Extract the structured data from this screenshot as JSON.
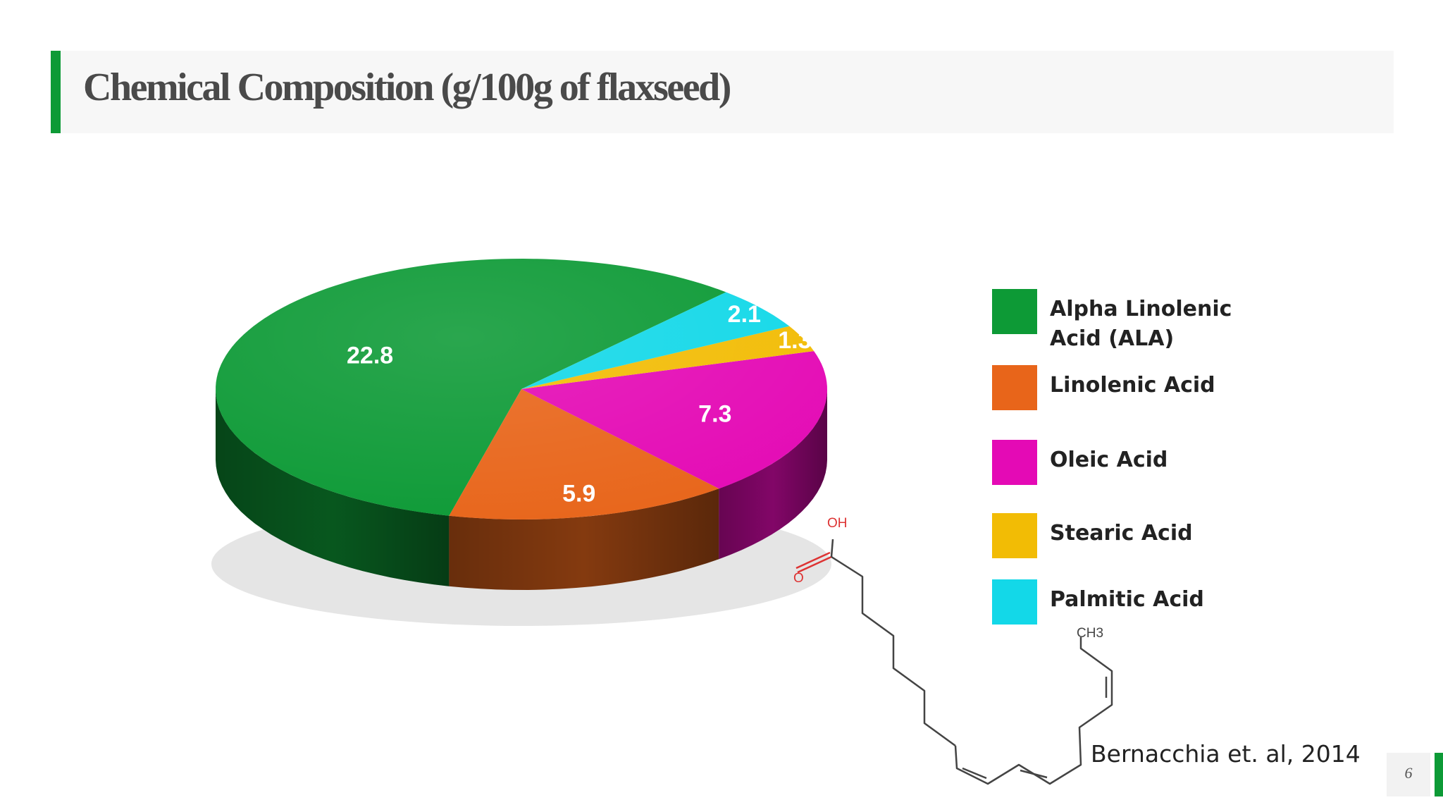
{
  "title": "Chemical Composition (g/100g of  flaxseed)",
  "chart_data": {
    "type": "pie",
    "title": "",
    "categories": [
      "Alpha Linolenic Acid (ALA)",
      "Linolenic Acid",
      "Oleic Acid",
      "Stearic Acid",
      "Palmitic Acid"
    ],
    "values": [
      22.8,
      5.9,
      7.3,
      1.3,
      2.1
    ],
    "labels": [
      "22.8",
      "5.9",
      "7.3",
      "1.3",
      "2.1"
    ],
    "colors": [
      "#0d9a36",
      "#e8651a",
      "#e40ab5",
      "#f2bc05",
      "#13d8e8"
    ],
    "legend_position": "right",
    "style": "3d"
  },
  "legend": [
    {
      "label": "Alpha Linolenic Acid (ALA)",
      "color": "#0d9a36"
    },
    {
      "label": "Linolenic Acid",
      "color": "#e8651a"
    },
    {
      "label": "Oleic Acid",
      "color": "#e40ab5"
    },
    {
      "label": "Stearic Acid",
      "color": "#f2bc05"
    },
    {
      "label": "Palmitic Acid",
      "color": "#13d8e8"
    }
  ],
  "structure": {
    "oh_label": "OH",
    "o_label": "O",
    "ch3_label": "CH3"
  },
  "citation": "Bernacchia et. al, 2014",
  "page_number": "6"
}
